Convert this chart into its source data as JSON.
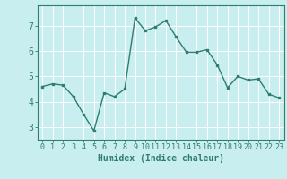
{
  "x": [
    0,
    1,
    2,
    3,
    4,
    5,
    6,
    7,
    8,
    9,
    10,
    11,
    12,
    13,
    14,
    15,
    16,
    17,
    18,
    19,
    20,
    21,
    22,
    23
  ],
  "y": [
    4.6,
    4.7,
    4.65,
    4.2,
    3.5,
    2.85,
    4.35,
    4.2,
    4.5,
    7.3,
    6.8,
    6.95,
    7.2,
    6.55,
    5.95,
    5.95,
    6.05,
    5.45,
    4.55,
    5.0,
    4.85,
    4.9,
    4.3,
    4.15
  ],
  "line_color": "#2e7d6e",
  "bg_color": "#c8eef0",
  "grid_color": "#ffffff",
  "xlabel": "Humidex (Indice chaleur)",
  "ylim": [
    2.5,
    7.8
  ],
  "xlim": [
    -0.5,
    23.5
  ],
  "yticks": [
    3,
    4,
    5,
    6,
    7
  ],
  "xticks": [
    0,
    1,
    2,
    3,
    4,
    5,
    6,
    7,
    8,
    9,
    10,
    11,
    12,
    13,
    14,
    15,
    16,
    17,
    18,
    19,
    20,
    21,
    22,
    23
  ],
  "tick_color": "#2e7d6e",
  "label_fontsize": 7,
  "tick_fontsize": 6
}
